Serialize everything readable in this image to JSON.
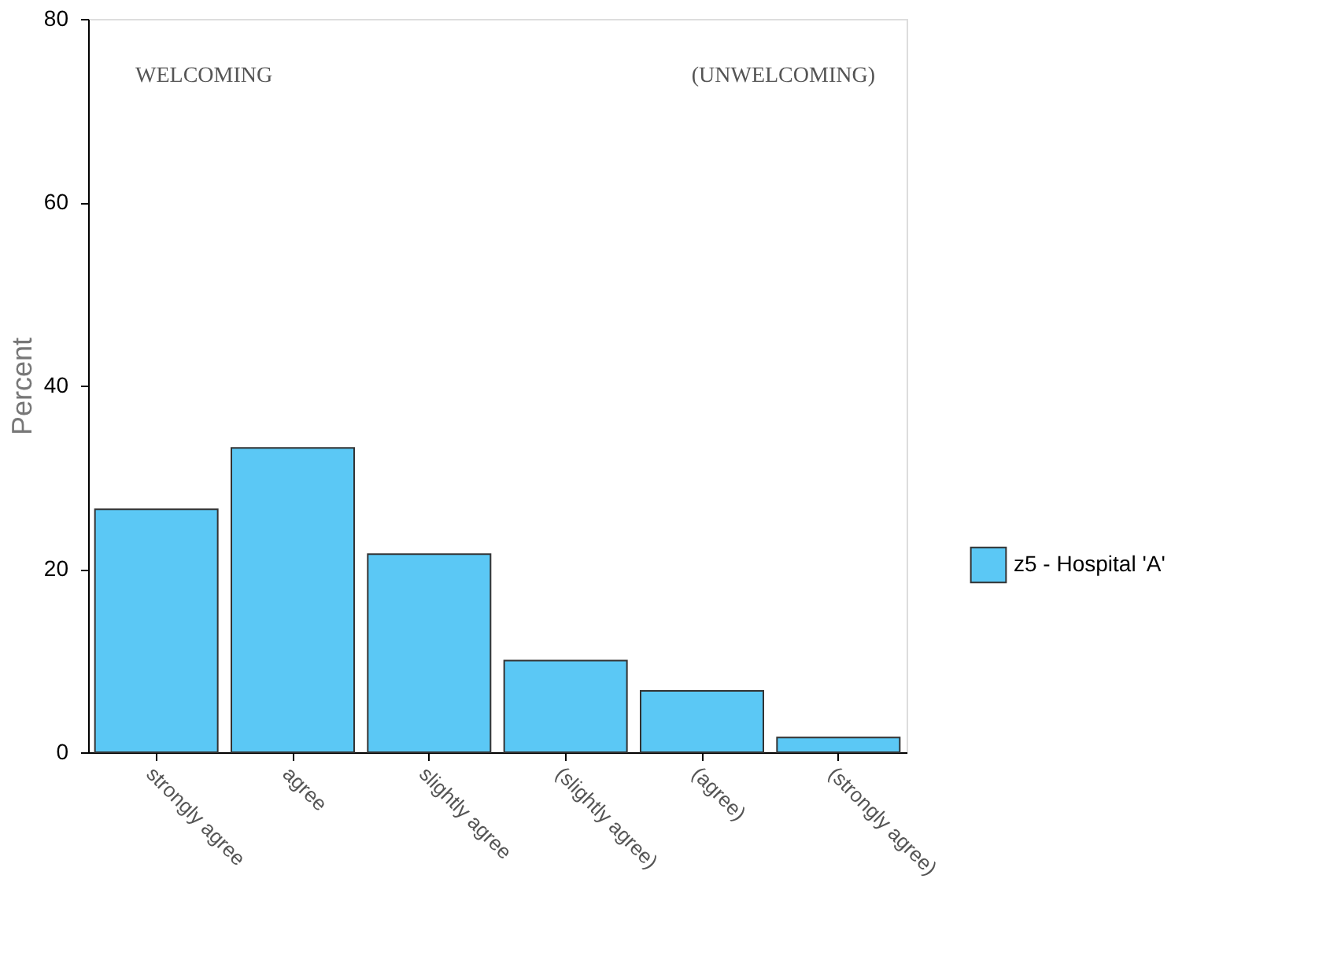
{
  "chart_data": {
    "type": "bar",
    "ylabel": "Percent",
    "categories": [
      "strongly agree",
      "agree",
      "slightly agree",
      "(slightly agree)",
      "(agree)",
      "(strongly agree)"
    ],
    "series": [
      {
        "name": "z5 - Hospital 'A'",
        "color": "#5bc8f5",
        "values": [
          26.5,
          33.2,
          21.6,
          10.0,
          6.7,
          1.6
        ]
      }
    ],
    "ylim": [
      0,
      80
    ],
    "yticks": [
      0,
      20,
      40,
      60,
      80
    ],
    "grid": false,
    "legend": "bottom right",
    "annotations": [
      "WELCOMING",
      "(UNWELCOMING)"
    ]
  }
}
